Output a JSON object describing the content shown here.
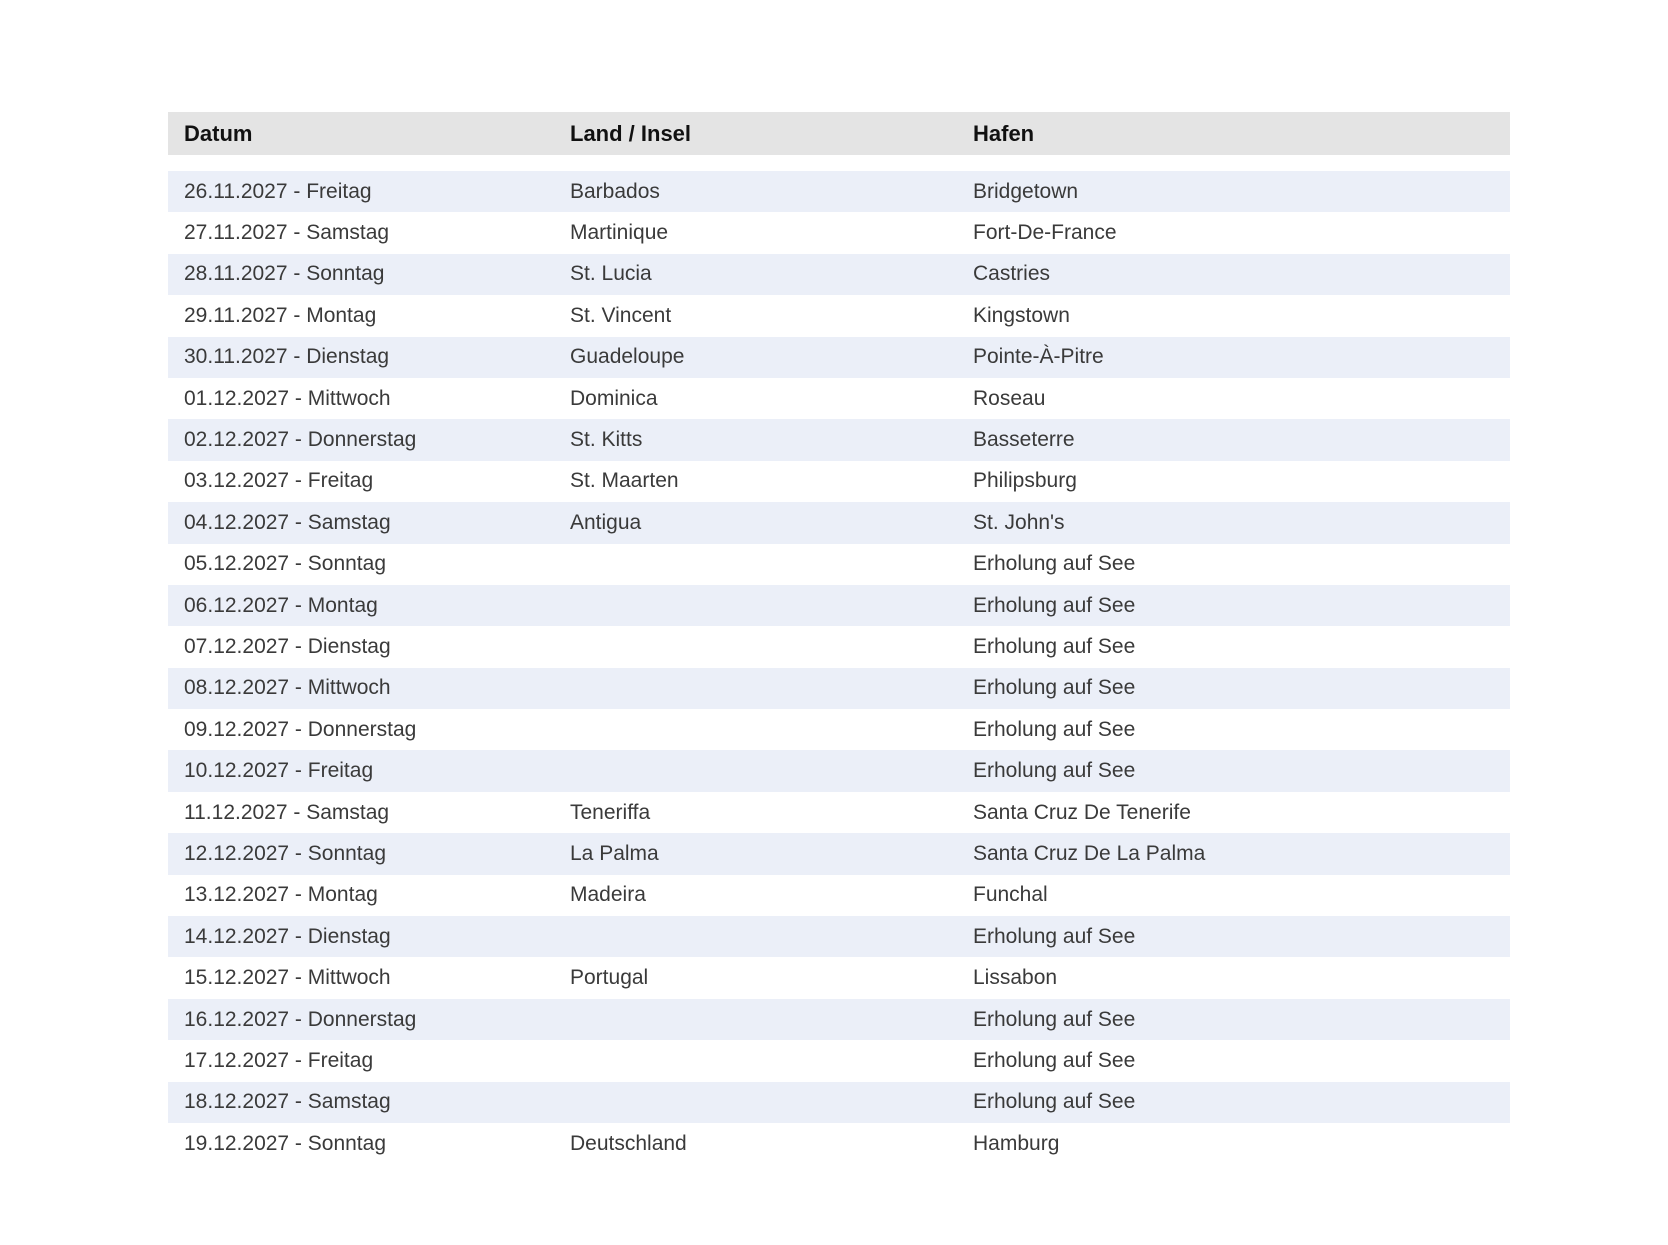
{
  "headers": [
    "Datum",
    "Land / Insel",
    "Hafen"
  ],
  "rows": [
    [
      "26.11.2027 - Freitag",
      "Barbados",
      "Bridgetown"
    ],
    [
      "27.11.2027 - Samstag",
      "Martinique",
      "Fort-De-France"
    ],
    [
      "28.11.2027 - Sonntag",
      "St. Lucia",
      "Castries"
    ],
    [
      "29.11.2027 - Montag",
      "St. Vincent",
      "Kingstown"
    ],
    [
      "30.11.2027 - Dienstag",
      "Guadeloupe",
      "Pointe-À-Pitre"
    ],
    [
      "01.12.2027 - Mittwoch",
      "Dominica",
      "Roseau"
    ],
    [
      "02.12.2027 - Donnerstag",
      "St. Kitts",
      "Basseterre"
    ],
    [
      "03.12.2027 - Freitag",
      "St. Maarten",
      "Philipsburg"
    ],
    [
      "04.12.2027 - Samstag",
      "Antigua",
      "St. John's"
    ],
    [
      "05.12.2027 - Sonntag",
      "",
      "Erholung auf See"
    ],
    [
      "06.12.2027 - Montag",
      "",
      "Erholung auf See"
    ],
    [
      "07.12.2027 - Dienstag",
      "",
      "Erholung auf See"
    ],
    [
      "08.12.2027 - Mittwoch",
      "",
      "Erholung auf See"
    ],
    [
      "09.12.2027 - Donnerstag",
      "",
      "Erholung auf See"
    ],
    [
      "10.12.2027 - Freitag",
      "",
      "Erholung auf See"
    ],
    [
      "11.12.2027 - Samstag",
      "Teneriffa",
      "Santa Cruz De Tenerife"
    ],
    [
      "12.12.2027 - Sonntag",
      "La Palma",
      "Santa Cruz De La Palma"
    ],
    [
      "13.12.2027 - Montag",
      "Madeira",
      "Funchal"
    ],
    [
      "14.12.2027 - Dienstag",
      "",
      "Erholung auf See"
    ],
    [
      "15.12.2027 - Mittwoch",
      "Portugal",
      "Lissabon"
    ],
    [
      "16.12.2027 - Donnerstag",
      "",
      "Erholung auf See"
    ],
    [
      "17.12.2027 - Freitag",
      "",
      "Erholung auf See"
    ],
    [
      "18.12.2027 - Samstag",
      "",
      "Erholung auf See"
    ],
    [
      "19.12.2027 - Sonntag",
      "Deutschland",
      "Hamburg"
    ]
  ],
  "colors": {
    "header_bg": "#e4e4e4",
    "stripe_bg": "#ebeff8"
  }
}
